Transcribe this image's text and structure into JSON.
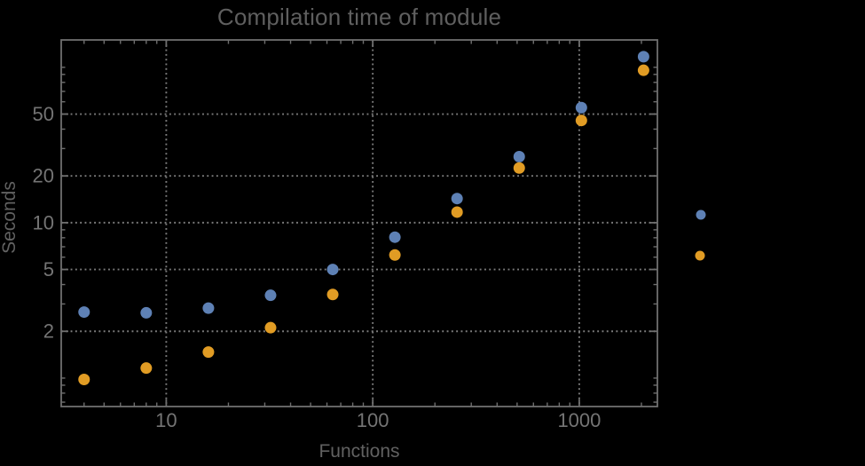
{
  "window": {
    "background_color": "#000000"
  },
  "chart_data": {
    "type": "scatter",
    "title": "Compilation time of module",
    "xlabel": "Functions",
    "ylabel": "Seconds",
    "xscale": "log",
    "yscale": "log",
    "xlim": [
      3.1,
      2390
    ],
    "ylim": [
      0.656,
      150
    ],
    "grid": {
      "visible": true,
      "style": "dotted",
      "color": "#7C7C7C",
      "at": "major-ticks"
    },
    "frame_color": "#6F6F6F",
    "title_color": "#5F5F5F",
    "axis_label_color": "#616161",
    "tick_label_color": "#747474",
    "x_ticks": {
      "major": [
        {
          "value": 10,
          "label": "10"
        },
        {
          "value": 100,
          "label": "100"
        },
        {
          "value": 1000,
          "label": "1000"
        }
      ],
      "minor": [
        4,
        5,
        6,
        7,
        8,
        9,
        20,
        30,
        40,
        50,
        60,
        70,
        80,
        90,
        200,
        300,
        400,
        500,
        600,
        700,
        800,
        900,
        2000
      ]
    },
    "y_ticks": {
      "major": [
        {
          "value": 2,
          "label": "2"
        },
        {
          "value": 5,
          "label": "5"
        },
        {
          "value": 10,
          "label": "10"
        },
        {
          "value": 20,
          "label": "20"
        },
        {
          "value": 50,
          "label": "50"
        }
      ],
      "minor": [
        0.7,
        0.8,
        0.9,
        1,
        3,
        4,
        6,
        7,
        8,
        9,
        30,
        40,
        60,
        70,
        80,
        90,
        100
      ]
    },
    "x": [
      4,
      8,
      16,
      32,
      64,
      128,
      256,
      512,
      1024,
      2048
    ],
    "series": [
      {
        "name": "series-1-blue",
        "color": "#5E81B5",
        "values": [
          2.66,
          2.63,
          2.82,
          3.41,
          5.0,
          8.07,
          14.3,
          26.6,
          55,
          117
        ]
      },
      {
        "name": "series-2-orange",
        "color": "#E19C24",
        "values": [
          0.98,
          1.16,
          1.47,
          2.11,
          3.45,
          6.2,
          11.7,
          22.5,
          45.5,
          95.7
        ]
      }
    ],
    "legend": {
      "position": "right-outside",
      "labels_visible": false,
      "markers": [
        {
          "series": "series-1-blue",
          "color": "#5E81B5"
        },
        {
          "series": "series-2-orange",
          "color": "#E19C24"
        }
      ]
    }
  }
}
